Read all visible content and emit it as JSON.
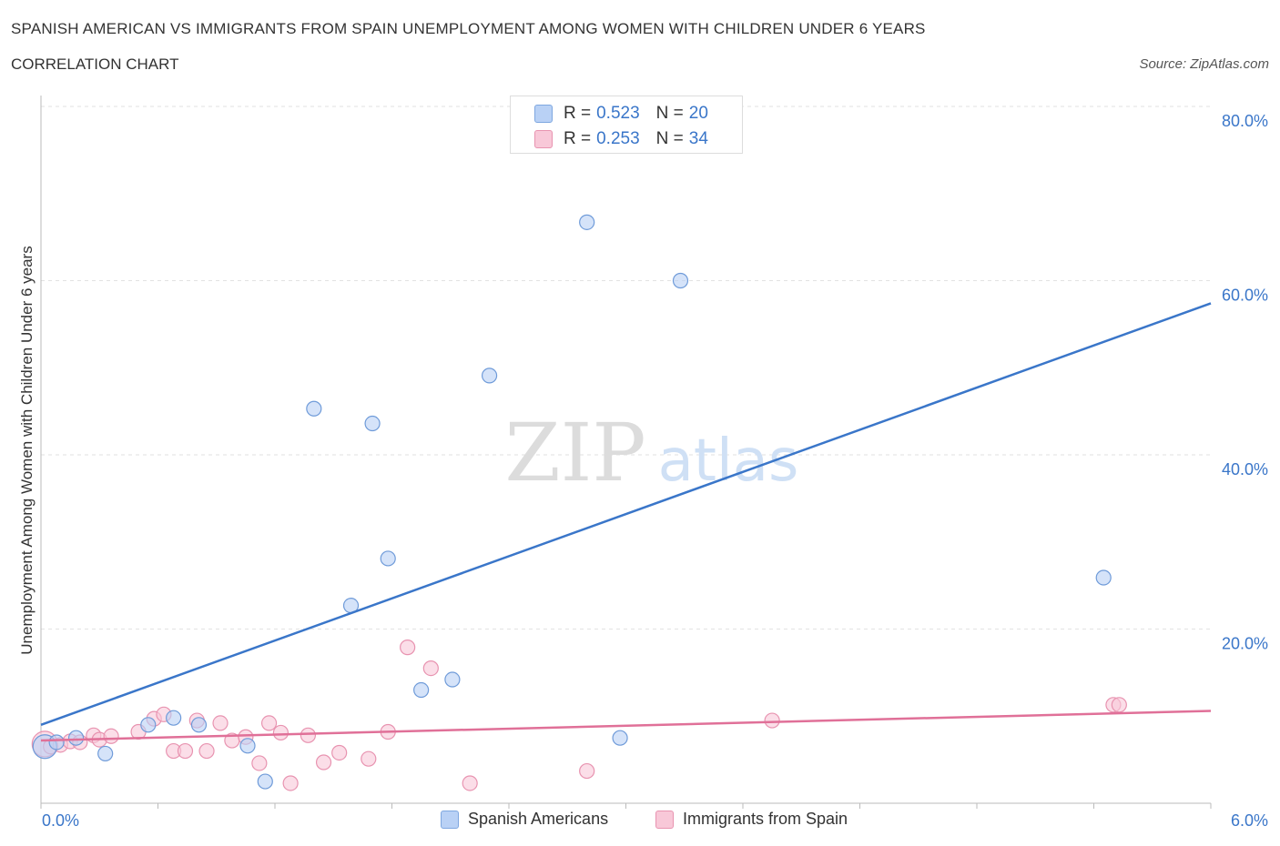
{
  "header": {
    "title": "SPANISH AMERICAN VS IMMIGRANTS FROM SPAIN UNEMPLOYMENT AMONG WOMEN WITH CHILDREN UNDER 6 YEARS",
    "subtitle": "CORRELATION CHART",
    "source": "Source: ZipAtlas.com"
  },
  "legend": {
    "rows": [
      {
        "r_label": "R = ",
        "r_value": "0.523",
        "n_label": "N = ",
        "n_value": "20"
      },
      {
        "r_label": "R = ",
        "r_value": "0.253",
        "n_label": "N = ",
        "n_value": "34"
      }
    ]
  },
  "watermark": {
    "zip": "ZIP",
    "atlas": "atlas"
  },
  "colors": {
    "blue": "#3a76c9",
    "pink": "#e07098",
    "blue_fill": "#b9d1f5",
    "pink_fill": "#f8c8d8"
  },
  "chart_data": {
    "type": "scatter",
    "title": "SPANISH AMERICAN VS IMMIGRANTS FROM SPAIN UNEMPLOYMENT AMONG WOMEN WITH CHILDREN UNDER 6 YEARS",
    "xlabel": "",
    "ylabel": "Unemployment Among Women with Children Under 6 years",
    "xlim": [
      0,
      6
    ],
    "ylim": [
      0,
      80
    ],
    "x_tick_labels": [
      "0.0%",
      "6.0%"
    ],
    "y_tick_labels": [
      "20.0%",
      "40.0%",
      "60.0%",
      "80.0%"
    ],
    "y_ticks": [
      20,
      40,
      60,
      80
    ],
    "series": [
      {
        "name": "Spanish Americans",
        "r": 0.523,
        "n": 20,
        "points": [
          [
            0.02,
            6.5
          ],
          [
            0.08,
            7.0
          ],
          [
            0.18,
            7.5
          ],
          [
            0.33,
            5.7
          ],
          [
            0.55,
            9.0
          ],
          [
            0.68,
            9.8
          ],
          [
            0.81,
            9.0
          ],
          [
            1.06,
            6.6
          ],
          [
            1.15,
            2.5
          ],
          [
            1.4,
            45.3
          ],
          [
            1.7,
            43.6
          ],
          [
            1.59,
            22.7
          ],
          [
            1.78,
            28.1
          ],
          [
            1.95,
            13.0
          ],
          [
            2.11,
            14.2
          ],
          [
            2.3,
            49.1
          ],
          [
            2.8,
            66.7
          ],
          [
            2.97,
            7.5
          ],
          [
            3.28,
            60.0
          ],
          [
            5.45,
            25.9
          ]
        ],
        "trend": {
          "x0": 0,
          "y0": 9.0,
          "x1": 6,
          "y1": 57.4
        }
      },
      {
        "name": "Immigrants from Spain",
        "r": 0.253,
        "n": 34,
        "points": [
          [
            0.02,
            6.8
          ],
          [
            0.05,
            6.5
          ],
          [
            0.1,
            6.7
          ],
          [
            0.15,
            7.1
          ],
          [
            0.2,
            7.0
          ],
          [
            0.27,
            7.8
          ],
          [
            0.3,
            7.3
          ],
          [
            0.36,
            7.7
          ],
          [
            0.5,
            8.2
          ],
          [
            0.58,
            9.7
          ],
          [
            0.63,
            10.2
          ],
          [
            0.68,
            6.0
          ],
          [
            0.74,
            6.0
          ],
          [
            0.8,
            9.5
          ],
          [
            0.85,
            6.0
          ],
          [
            0.92,
            9.2
          ],
          [
            0.98,
            7.2
          ],
          [
            1.05,
            7.6
          ],
          [
            1.12,
            4.6
          ],
          [
            1.17,
            9.2
          ],
          [
            1.23,
            8.1
          ],
          [
            1.28,
            2.3
          ],
          [
            1.37,
            7.8
          ],
          [
            1.45,
            4.7
          ],
          [
            1.53,
            5.8
          ],
          [
            1.68,
            5.1
          ],
          [
            1.78,
            8.2
          ],
          [
            1.88,
            17.9
          ],
          [
            2.0,
            15.5
          ],
          [
            2.2,
            2.3
          ],
          [
            2.8,
            3.7
          ],
          [
            3.75,
            9.5
          ],
          [
            5.5,
            11.3
          ],
          [
            5.53,
            11.3
          ]
        ],
        "trend": {
          "x0": 0,
          "y0": 7.2,
          "x1": 6,
          "y1": 10.6
        }
      }
    ]
  }
}
